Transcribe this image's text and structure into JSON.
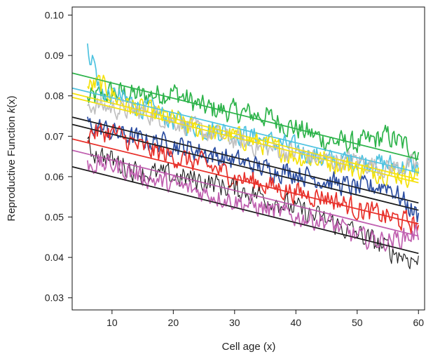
{
  "chart_data": {
    "type": "line",
    "xlabel": "Cell age (x)",
    "ylabel_prefix": "Reproductive Function ",
    "ylabel_italic": "k",
    "ylabel_suffix": "(x)",
    "xlim": [
      3.5,
      61
    ],
    "ylim": [
      0.027,
      0.102
    ],
    "xticks": [
      10,
      20,
      30,
      40,
      50,
      60
    ],
    "yticks": [
      0.03,
      0.04,
      0.05,
      0.06,
      0.07,
      0.08,
      0.09,
      0.1
    ],
    "ytick_labels": [
      "0.03",
      "0.04",
      "0.05",
      "0.06",
      "0.07",
      "0.08",
      "0.09",
      "0.10"
    ],
    "legend": "none",
    "grid": false,
    "x_range_data": [
      6,
      60
    ],
    "noisy_series": [
      {
        "color": "#2db34a",
        "points": [
          [
            6,
            0.079
          ],
          [
            10,
            0.081
          ],
          [
            15,
            0.08
          ],
          [
            20,
            0.081
          ],
          [
            25,
            0.077
          ],
          [
            30,
            0.076
          ],
          [
            35,
            0.075
          ],
          [
            40,
            0.072
          ],
          [
            45,
            0.069
          ],
          [
            50,
            0.068
          ],
          [
            55,
            0.07
          ],
          [
            60,
            0.066
          ]
        ],
        "amp": 0.0032
      },
      {
        "color": "#4fc3e0",
        "points": [
          [
            6,
            0.091
          ],
          [
            7,
            0.089
          ],
          [
            8,
            0.081
          ],
          [
            12,
            0.079
          ],
          [
            20,
            0.074
          ],
          [
            25,
            0.072
          ],
          [
            30,
            0.071
          ],
          [
            35,
            0.069
          ],
          [
            40,
            0.067
          ],
          [
            45,
            0.064
          ],
          [
            50,
            0.064
          ],
          [
            55,
            0.063
          ],
          [
            60,
            0.062
          ]
        ],
        "amp": 0.003
      },
      {
        "color": "#f5e20c",
        "points": [
          [
            6,
            0.082
          ],
          [
            8,
            0.083
          ],
          [
            12,
            0.078
          ],
          [
            20,
            0.074
          ],
          [
            25,
            0.071
          ],
          [
            30,
            0.07
          ],
          [
            35,
            0.068
          ],
          [
            40,
            0.065
          ],
          [
            45,
            0.064
          ],
          [
            50,
            0.062
          ],
          [
            55,
            0.061
          ],
          [
            60,
            0.06
          ]
        ],
        "amp": 0.003
      },
      {
        "color": "#c0c0c0",
        "points": [
          [
            6,
            0.078
          ],
          [
            10,
            0.077
          ],
          [
            15,
            0.076
          ],
          [
            20,
            0.074
          ],
          [
            25,
            0.071
          ],
          [
            30,
            0.069
          ],
          [
            35,
            0.067
          ],
          [
            40,
            0.066
          ],
          [
            45,
            0.064
          ],
          [
            50,
            0.064
          ],
          [
            55,
            0.062
          ],
          [
            60,
            0.063
          ]
        ],
        "amp": 0.0028
      },
      {
        "color": "#2d4fa3",
        "points": [
          [
            6,
            0.073
          ],
          [
            10,
            0.071
          ],
          [
            15,
            0.069
          ],
          [
            20,
            0.068
          ],
          [
            25,
            0.066
          ],
          [
            30,
            0.064
          ],
          [
            35,
            0.062
          ],
          [
            40,
            0.061
          ],
          [
            45,
            0.059
          ],
          [
            50,
            0.057
          ],
          [
            55,
            0.058
          ],
          [
            60,
            0.05
          ]
        ],
        "amp": 0.003
      },
      {
        "color": "#e8302a",
        "points": [
          [
            6,
            0.071
          ],
          [
            10,
            0.071
          ],
          [
            15,
            0.067
          ],
          [
            20,
            0.065
          ],
          [
            25,
            0.063
          ],
          [
            30,
            0.06
          ],
          [
            35,
            0.058
          ],
          [
            40,
            0.056
          ],
          [
            45,
            0.055
          ],
          [
            50,
            0.052
          ],
          [
            55,
            0.05
          ],
          [
            60,
            0.048
          ]
        ],
        "amp": 0.003
      },
      {
        "color": "#1a1a1a",
        "points": [
          [
            6,
            0.067
          ],
          [
            10,
            0.064
          ],
          [
            15,
            0.061
          ],
          [
            20,
            0.06
          ],
          [
            25,
            0.059
          ],
          [
            30,
            0.057
          ],
          [
            35,
            0.055
          ],
          [
            40,
            0.052
          ],
          [
            45,
            0.049
          ],
          [
            50,
            0.046
          ],
          [
            55,
            0.042
          ],
          [
            60,
            0.039
          ]
        ],
        "amp": 0.0032
      },
      {
        "color": "#c060b0",
        "points": [
          [
            6,
            0.063
          ],
          [
            10,
            0.063
          ],
          [
            15,
            0.06
          ],
          [
            20,
            0.058
          ],
          [
            25,
            0.056
          ],
          [
            30,
            0.054
          ],
          [
            35,
            0.052
          ],
          [
            40,
            0.05
          ],
          [
            45,
            0.049
          ],
          [
            50,
            0.045
          ],
          [
            55,
            0.044
          ],
          [
            60,
            0.046
          ]
        ],
        "amp": 0.0028
      }
    ],
    "fit_lines": [
      {
        "color": "#2db34a",
        "y_start": 0.0847,
        "y_end": 0.0643
      },
      {
        "color": "#4fc3e0",
        "y_start": 0.081,
        "y_end": 0.061
      },
      {
        "color": "#f5e20c",
        "y_start": 0.0797,
        "y_end": 0.0593
      },
      {
        "color": "#f5e20c",
        "y_start": 0.0787,
        "y_end": 0.0585
      },
      {
        "color": "#1a1a1a",
        "y_start": 0.0738,
        "y_end": 0.0535
      },
      {
        "color": "#1a1a1a",
        "y_start": 0.072,
        "y_end": 0.0517
      },
      {
        "color": "#e8302a",
        "y_start": 0.0684,
        "y_end": 0.0483
      },
      {
        "color": "#c060b0",
        "y_start": 0.0656,
        "y_end": 0.0453
      },
      {
        "color": "#1a1a1a",
        "y_start": 0.0615,
        "y_end": 0.041
      }
    ]
  }
}
